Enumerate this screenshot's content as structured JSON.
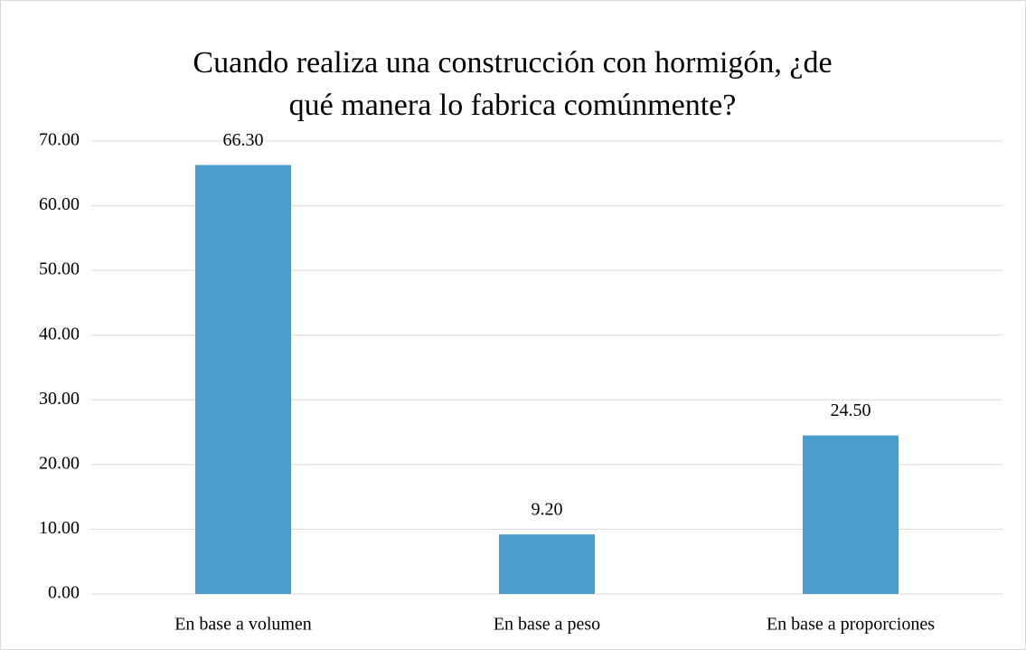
{
  "chart_data": {
    "type": "bar",
    "title": "Cuando realiza una construcción con hormigón, ¿de qué manera lo fabrica comúnmente?",
    "categories": [
      "En base a volumen",
      "En base a peso",
      "En base a proporciones"
    ],
    "values": [
      66.3,
      9.2,
      24.5
    ],
    "value_labels": [
      "66.30",
      "9.20",
      "24.50"
    ],
    "color": "#4a9dcb",
    "ylim": [
      0,
      70
    ],
    "yticks": [
      {
        "value": 0,
        "label": "0.00"
      },
      {
        "value": 10,
        "label": "10.00"
      },
      {
        "value": 20,
        "label": "20.00"
      },
      {
        "value": 30,
        "label": "30.00"
      },
      {
        "value": 40,
        "label": "40.00"
      },
      {
        "value": 50,
        "label": "50.00"
      },
      {
        "value": 60,
        "label": "60.00"
      },
      {
        "value": 70,
        "label": "70.00"
      }
    ],
    "grid": true
  }
}
